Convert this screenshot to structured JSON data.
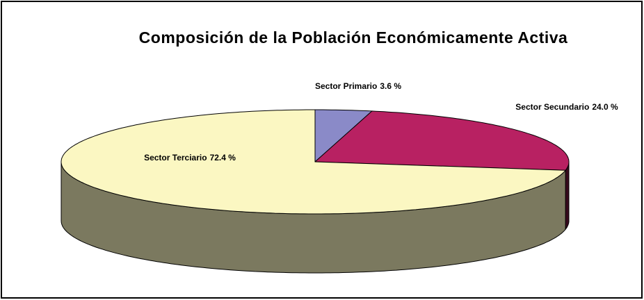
{
  "chart_data": {
    "type": "pie",
    "title": "Composición de la Población Económicamente Activa",
    "categories": [
      "Sector Primario",
      "Sector Secundario",
      "Sector Terciario"
    ],
    "values": [
      3.6,
      24.0,
      72.4
    ],
    "value_labels": [
      "3.6 %",
      "24.0 %",
      "72.4 %"
    ],
    "colors": [
      "#8a8ac8",
      "#b82162",
      "#fbf7c2"
    ]
  }
}
